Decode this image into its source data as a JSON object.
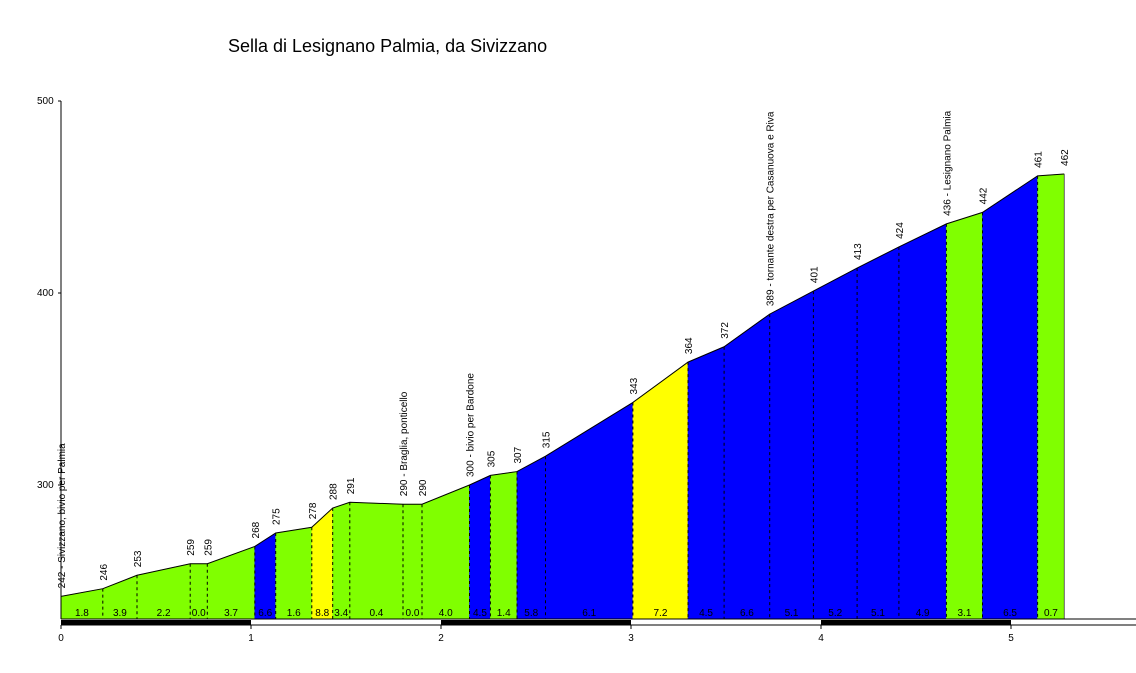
{
  "chart_data": {
    "type": "area",
    "title": "Sella di Lesignano Palmia, da Sivizzano",
    "xlabel": "",
    "ylabel": "",
    "xlim": [
      0,
      5.6
    ],
    "ylim": [
      230,
      500
    ],
    "x_ticks": [
      "0",
      "1",
      "2",
      "3",
      "4",
      "5"
    ],
    "y_ticks": [
      "300",
      "400",
      "500"
    ],
    "colors": {
      "green": "#80ff00",
      "yellow": "#ffff00",
      "blue": "#0000ff",
      "outline": "#000000"
    },
    "points": [
      {
        "x": 0.0,
        "y": 242,
        "label": "242 - Sivizzano, bivio per Palmia"
      },
      {
        "x": 0.22,
        "y": 246,
        "label": "246"
      },
      {
        "x": 0.4,
        "y": 253,
        "label": "253"
      },
      {
        "x": 0.68,
        "y": 259,
        "label": "259"
      },
      {
        "x": 0.77,
        "y": 259,
        "label": "259"
      },
      {
        "x": 1.02,
        "y": 268,
        "label": "268"
      },
      {
        "x": 1.13,
        "y": 275,
        "label": "275"
      },
      {
        "x": 1.32,
        "y": 278,
        "label": "278"
      },
      {
        "x": 1.43,
        "y": 288,
        "label": "288"
      },
      {
        "x": 1.52,
        "y": 291,
        "label": "291"
      },
      {
        "x": 1.8,
        "y": 290,
        "label": "290 - Braglia, ponticello"
      },
      {
        "x": 1.9,
        "y": 290,
        "label": "290"
      },
      {
        "x": 2.15,
        "y": 300,
        "label": "300 - bivio per Bardone"
      },
      {
        "x": 2.26,
        "y": 305,
        "label": "305"
      },
      {
        "x": 2.4,
        "y": 307,
        "label": "307"
      },
      {
        "x": 2.55,
        "y": 315,
        "label": "315"
      },
      {
        "x": 3.01,
        "y": 343,
        "label": "343"
      },
      {
        "x": 3.3,
        "y": 364,
        "label": "364"
      },
      {
        "x": 3.49,
        "y": 372,
        "label": "372"
      },
      {
        "x": 3.73,
        "y": 389,
        "label": "389 - tornante destra per Casanuova e Riva"
      },
      {
        "x": 3.96,
        "y": 401,
        "label": "401"
      },
      {
        "x": 4.19,
        "y": 413,
        "label": "413"
      },
      {
        "x": 4.41,
        "y": 424,
        "label": "424"
      },
      {
        "x": 4.66,
        "y": 436,
        "label": "436 - Lesignano Palmia"
      },
      {
        "x": 4.85,
        "y": 442,
        "label": "442"
      },
      {
        "x": 5.14,
        "y": 461,
        "label": "461"
      },
      {
        "x": 5.28,
        "y": 462,
        "label": "462"
      }
    ],
    "segments": [
      {
        "gradient": "1.8",
        "color": "green"
      },
      {
        "gradient": "3.9",
        "color": "green"
      },
      {
        "gradient": "2.2",
        "color": "green"
      },
      {
        "gradient": "0.0",
        "color": "green"
      },
      {
        "gradient": "3.7",
        "color": "green"
      },
      {
        "gradient": "6.6",
        "color": "blue"
      },
      {
        "gradient": "1.6",
        "color": "green"
      },
      {
        "gradient": "8.8",
        "color": "yellow"
      },
      {
        "gradient": "3.4",
        "color": "green"
      },
      {
        "gradient": "0.4",
        "color": "green"
      },
      {
        "gradient": "0.0",
        "color": "green"
      },
      {
        "gradient": "4.0",
        "color": "green"
      },
      {
        "gradient": "4.5",
        "color": "blue"
      },
      {
        "gradient": "1.4",
        "color": "green"
      },
      {
        "gradient": "5.8",
        "color": "blue"
      },
      {
        "gradient": "6.1",
        "color": "blue"
      },
      {
        "gradient": "7.2",
        "color": "yellow"
      },
      {
        "gradient": "4.5",
        "color": "blue"
      },
      {
        "gradient": "6.6",
        "color": "blue"
      },
      {
        "gradient": "5.1",
        "color": "blue"
      },
      {
        "gradient": "5.2",
        "color": "blue"
      },
      {
        "gradient": "5.1",
        "color": "blue"
      },
      {
        "gradient": "4.9",
        "color": "blue"
      },
      {
        "gradient": "3.1",
        "color": "green"
      },
      {
        "gradient": "6.5",
        "color": "blue"
      },
      {
        "gradient": "0.7",
        "color": "green"
      }
    ]
  }
}
